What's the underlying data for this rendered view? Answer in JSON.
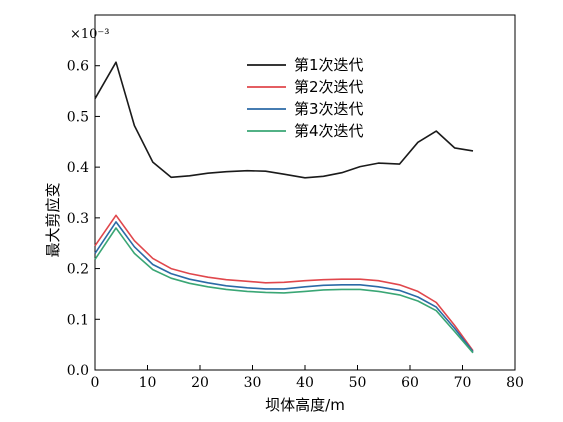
{
  "chart_data": {
    "type": "line",
    "title": "",
    "xlabel": "坝体高度/m",
    "ylabel": "最大剪应变",
    "y_multiplier": "×10⁻³",
    "xlim": [
      0,
      80
    ],
    "ylim": [
      0,
      0.7
    ],
    "xticks": [
      0,
      10,
      20,
      30,
      40,
      50,
      60,
      70,
      80
    ],
    "yticks": [
      0.0,
      0.1,
      0.2,
      0.3,
      0.4,
      0.5,
      0.6
    ],
    "xtick_labels": [
      "0",
      "10",
      "20",
      "30",
      "40",
      "50",
      "60",
      "70",
      "80"
    ],
    "ytick_labels": [
      "0.0",
      "0.1",
      "0.2",
      "0.3",
      "0.4",
      "0.5",
      "0.6"
    ],
    "legend_position": "top-center",
    "grid": false,
    "x": [
      0,
      4,
      7.5,
      11,
      14.5,
      18,
      21.5,
      25,
      29,
      32.5,
      36,
      40,
      43.5,
      47,
      50.5,
      54,
      58,
      61.5,
      65,
      68.5,
      72
    ],
    "series": [
      {
        "name": "第1次迭代",
        "color": "#1a1a1a",
        "values": [
          0.535,
          0.607,
          0.482,
          0.41,
          0.38,
          0.383,
          0.388,
          0.391,
          0.393,
          0.392,
          0.386,
          0.379,
          0.382,
          0.389,
          0.401,
          0.408,
          0.406,
          0.449,
          0.471,
          0.438,
          0.432
        ]
      },
      {
        "name": "第2次迭代",
        "color": "#e0474c",
        "values": [
          0.245,
          0.305,
          0.255,
          0.22,
          0.2,
          0.19,
          0.183,
          0.178,
          0.175,
          0.172,
          0.173,
          0.176,
          0.178,
          0.179,
          0.179,
          0.176,
          0.168,
          0.155,
          0.133,
          0.088,
          0.038
        ]
      },
      {
        "name": "第3次迭代",
        "color": "#2b6aa6",
        "values": [
          0.23,
          0.292,
          0.243,
          0.208,
          0.19,
          0.179,
          0.172,
          0.166,
          0.162,
          0.16,
          0.16,
          0.164,
          0.167,
          0.168,
          0.168,
          0.164,
          0.157,
          0.144,
          0.124,
          0.082,
          0.036
        ]
      },
      {
        "name": "第4次迭代",
        "color": "#3aa675",
        "values": [
          0.218,
          0.28,
          0.23,
          0.198,
          0.181,
          0.171,
          0.164,
          0.159,
          0.155,
          0.153,
          0.152,
          0.155,
          0.158,
          0.159,
          0.159,
          0.155,
          0.148,
          0.136,
          0.117,
          0.076,
          0.034
        ]
      }
    ]
  }
}
